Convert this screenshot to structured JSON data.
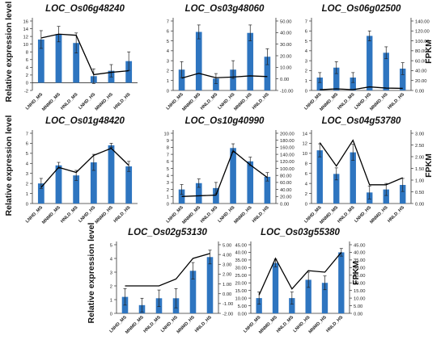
{
  "figure": {
    "left_axis_label": "Relative expression level",
    "right_axis_label": "FPKM"
  },
  "colors": {
    "bar": "#2e75c0",
    "line": "#000000",
    "error": "#222222",
    "axis": "#333333"
  },
  "chart_data": [
    {
      "type": "bar+line",
      "title": "LOC_Os06g48240",
      "categories": [
        "LNHD_MS",
        "MNMD_MS",
        "HNLD_MS",
        "LNHD_HS",
        "MNMD_HS",
        "HNLD_HS"
      ],
      "bar_values": [
        11.2,
        12.6,
        10.3,
        1.7,
        3.1,
        5.6
      ],
      "bar_errors": [
        2.3,
        2.0,
        2.6,
        1.9,
        1.6,
        2.4
      ],
      "line_values": [
        11.6,
        12.6,
        12.3,
        2.1,
        2.7,
        3.1
      ],
      "left_ylim": [
        -2,
        16
      ],
      "left_ticks": [
        "-2",
        "0",
        "2",
        "4",
        "6",
        "8",
        "10",
        "12",
        "14",
        "16"
      ],
      "right_axis": false
    },
    {
      "type": "bar+line",
      "title": "LOC_Os03g48060",
      "categories": [
        "LNHD_MS",
        "MNMD_MS",
        "HNLD_MS",
        "LNHD_HS",
        "MNMD_HS",
        "HNLD_HS"
      ],
      "bar_values": [
        2.1,
        5.9,
        1.2,
        2.1,
        5.8,
        3.4
      ],
      "bar_errors": [
        0.8,
        0.7,
        0.5,
        0.9,
        0.8,
        0.8
      ],
      "line_values": [
        0.6,
        4.8,
        1.0,
        1.6,
        2.6,
        2.0
      ],
      "left_ylim": [
        0,
        7
      ],
      "left_ticks": [
        "0",
        "1",
        "2",
        "3",
        "4",
        "5",
        "6",
        "7"
      ],
      "right_axis": true,
      "right_ylim": [
        -10,
        50
      ],
      "right_ticks": [
        "-10.00",
        "0.00",
        "10.00",
        "20.00",
        "30.00",
        "40.00",
        "50.00"
      ]
    },
    {
      "type": "bar+line",
      "title": "LOC_Os06g02500",
      "categories": [
        "LNHD_MS",
        "MNMD_MS",
        "HNLD_MS",
        "LNHD_HS",
        "MNMD_HS",
        "HNLD_HS"
      ],
      "bar_values": [
        1.3,
        2.3,
        1.3,
        5.5,
        3.8,
        2.2
      ],
      "bar_errors": [
        0.5,
        0.6,
        0.5,
        0.5,
        0.6,
        0.6
      ],
      "line_values": [
        1.5,
        3.3,
        1.6,
        7.2,
        4.8,
        4.2
      ],
      "left_ylim": [
        0,
        7
      ],
      "left_ticks": [
        "0",
        "1",
        "2",
        "3",
        "4",
        "5",
        "6",
        "7"
      ],
      "right_axis": true,
      "right_ylim": [
        0,
        140
      ],
      "right_ticks": [
        "0.00",
        "20.00",
        "40.00",
        "60.00",
        "80.00",
        "100.00",
        "120.00",
        "140.00"
      ]
    },
    {
      "type": "bar+line",
      "title": "LOC_Os01g48420",
      "categories": [
        "LNHD_MS",
        "MNMD_MS",
        "HNLD_MS",
        "LNHD_HS",
        "MNMD_HS",
        "HNLD_HS"
      ],
      "bar_values": [
        2.0,
        3.8,
        2.8,
        4.1,
        5.8,
        3.7
      ],
      "bar_errors": [
        0.5,
        0.3,
        0.5,
        0.8,
        0.2,
        0.5
      ],
      "line_values": [
        1.6,
        3.6,
        3.1,
        4.8,
        5.5,
        3.8
      ],
      "left_ylim": [
        0,
        7
      ],
      "left_ticks": [
        "0",
        "1",
        "2",
        "3",
        "4",
        "5",
        "6",
        "7"
      ],
      "right_axis": false
    },
    {
      "type": "bar+line",
      "title": "LOC_Os10g40990",
      "categories": [
        "LNHD_MS",
        "MNMD_MS",
        "HNLD_MS",
        "LNHD_HS",
        "MNMD_HS",
        "HNLD_HS"
      ],
      "bar_values": [
        2.0,
        2.9,
        2.2,
        7.9,
        6.0,
        3.8
      ],
      "bar_errors": [
        0.7,
        0.6,
        0.8,
        0.6,
        0.6,
        0.6
      ],
      "line_values": [
        20.0,
        22.0,
        24.0,
        150.0,
        110.0,
        74.0
      ],
      "left_ylim": [
        0,
        10
      ],
      "left_ticks": [
        "0",
        "1",
        "2",
        "3",
        "4",
        "5",
        "6",
        "7",
        "8",
        "9",
        "10"
      ],
      "right_axis": true,
      "right_ylim": [
        0,
        200
      ],
      "right_ticks": [
        "0.00",
        "20.00",
        "40.00",
        "60.00",
        "80.00",
        "100.00",
        "120.00",
        "140.00",
        "160.00",
        "180.00",
        "200.00"
      ]
    },
    {
      "type": "bar+line",
      "title": "LOC_Os04g53780",
      "categories": [
        "LNHD_MS",
        "MNMD_MS",
        "HNLD_MS",
        "LNHD_HS",
        "MNMD_HS",
        "HNLD_HS"
      ],
      "bar_values": [
        10.6,
        5.9,
        10.2,
        2.2,
        2.8,
        3.7
      ],
      "bar_errors": [
        1.3,
        1.2,
        1.6,
        1.3,
        1.2,
        1.3
      ],
      "line_values": [
        2.6,
        1.6,
        2.7,
        0.8,
        0.8,
        1.1
      ],
      "left_ylim": [
        0,
        14
      ],
      "left_ticks": [
        "0",
        "2",
        "4",
        "6",
        "8",
        "10",
        "12",
        "14"
      ],
      "right_axis": true,
      "right_ylim": [
        0,
        3
      ],
      "right_ticks": [
        "0.00",
        "0.50",
        "1.00",
        "1.50",
        "2.00",
        "2.50",
        "3.00"
      ]
    },
    {
      "type": "bar+line",
      "title": "LOC_Os02g53130",
      "categories": [
        "LNHD_MS",
        "MNMD_MS",
        "HNLD_MS",
        "LNHD_HS",
        "MNMD_HS",
        "HNLD_HS"
      ],
      "bar_values": [
        1.2,
        0.6,
        1.1,
        1.1,
        3.1,
        4.1
      ],
      "bar_errors": [
        0.6,
        0.5,
        0.6,
        0.7,
        0.6,
        0.5
      ],
      "line_values": [
        0.8,
        0.8,
        0.8,
        1.5,
        3.6,
        4.1
      ],
      "left_ylim": [
        0,
        5
      ],
      "left_ticks": [
        "0",
        "1",
        "2",
        "3",
        "4",
        "5"
      ],
      "right_axis": true,
      "right_ylim": [
        -2,
        5
      ],
      "right_ticks": [
        "-2.00",
        "-1.00",
        "0.00",
        "1.00",
        "2.00",
        "3.00",
        "4.00",
        "5.00"
      ]
    },
    {
      "type": "bar+line",
      "title": "LOC_Os03g55380",
      "categories": [
        "LNHD_MS",
        "MNMD_MS",
        "HNLD_MS",
        "LNHD_HS",
        "MNMD_HS",
        "HNLD_HS"
      ],
      "bar_values": [
        10.0,
        33.0,
        10.0,
        22.0,
        20.0,
        40.0
      ],
      "bar_errors": [
        4.0,
        2.5,
        4.0,
        5.0,
        4.5,
        2.5
      ],
      "line_values": [
        12.0,
        36.0,
        16.0,
        28.0,
        27.0,
        40.0
      ],
      "left_ylim": [
        0,
        45
      ],
      "left_ticks": [
        "0.00",
        "5.00",
        "10.00",
        "15.00",
        "20.00",
        "25.00",
        "30.00",
        "35.00",
        "40.00",
        "45.00"
      ],
      "right_axis": true,
      "right_ylim": [
        0,
        45
      ],
      "right_ticks": [
        "0.00",
        "5.00",
        "10.00",
        "15.00",
        "20.00",
        "25.00",
        "30.00",
        "35.00",
        "40.00",
        "45.00"
      ]
    }
  ]
}
